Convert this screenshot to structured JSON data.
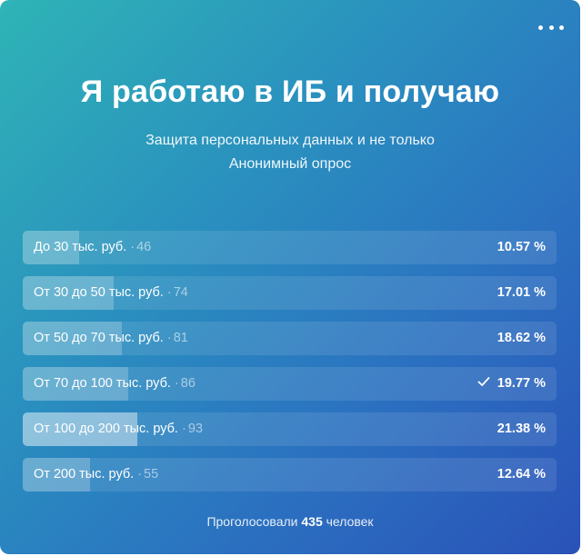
{
  "poll": {
    "title": "Я работаю в ИБ и получаю",
    "subtitle": "Защита персональных данных и не только",
    "type": "Анонимный опрос",
    "options": [
      {
        "label": "До 30 тыс. руб.",
        "count": "46",
        "percent": "10.57 %",
        "fraction": 0.1057,
        "voted": false,
        "top": false
      },
      {
        "label": "От 30 до 50 тыс. руб.",
        "count": "74",
        "percent": "17.01 %",
        "fraction": 0.1701,
        "voted": false,
        "top": false
      },
      {
        "label": "От 50 до 70 тыс. руб.",
        "count": "81",
        "percent": "18.62 %",
        "fraction": 0.1862,
        "voted": false,
        "top": false
      },
      {
        "label": "От 70 до 100 тыс. руб.",
        "count": "86",
        "percent": "19.77 %",
        "fraction": 0.1977,
        "voted": true,
        "top": false
      },
      {
        "label": "От 100 до 200 тыс. руб.",
        "count": "93",
        "percent": "21.38 %",
        "fraction": 0.2138,
        "voted": false,
        "top": true
      },
      {
        "label": "От 200 тыс. руб.",
        "count": "55",
        "percent": "12.64 %",
        "fraction": 0.1264,
        "voted": false,
        "top": false
      }
    ],
    "footer": {
      "prefix": "Проголосовали",
      "total": "435",
      "suffix": "человек"
    }
  },
  "icons": {
    "menu": "more-horizontal-icon",
    "check": "checkmark-icon"
  }
}
